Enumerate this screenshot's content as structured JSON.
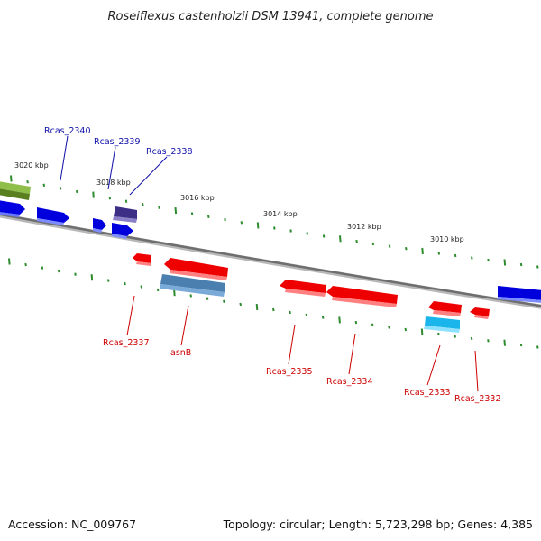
{
  "title": "Roseiflexus castenholzii DSM 13941, complete genome",
  "footer": {
    "accession": "Accession: NC_009767",
    "topology": "Topology: circular; Length: 5,723,298 bp; Genes: 4,385"
  },
  "colors": {
    "backbone": "#808080",
    "tick": "#2e8b2e",
    "forward_gene": "#0000dd",
    "forward_label": "#1010aa",
    "reverse_gene": "#ee0000",
    "reverse_label": "#cc0000",
    "selected_forward_gene": "#3a3080",
    "selected_reverse_gene": "#4a7aaa",
    "highlight_gene": "#1ab0e6",
    "partial_gene": "#6a9a2a"
  },
  "scale_labels": [
    "3020 kbp",
    "3018 kbp",
    "3016 kbp",
    "3014 kbp",
    "3012 kbp",
    "3010 kbp"
  ],
  "genes": [
    {
      "id": "Rcas_2340",
      "label": "Rcas_2340",
      "strand": "forward"
    },
    {
      "id": "Rcas_2339",
      "label": "Rcas_2339",
      "strand": "forward"
    },
    {
      "id": "Rcas_2338",
      "label": "Rcas_2338",
      "strand": "forward"
    },
    {
      "id": "Rcas_2337",
      "label": "Rcas_2337",
      "strand": "reverse"
    },
    {
      "id": "asnB",
      "label": "asnB",
      "strand": "reverse"
    },
    {
      "id": "Rcas_2335",
      "label": "Rcas_2335",
      "strand": "reverse"
    },
    {
      "id": "Rcas_2334",
      "label": "Rcas_2334",
      "strand": "reverse"
    },
    {
      "id": "Rcas_2333",
      "label": "Rcas_2333",
      "strand": "reverse"
    },
    {
      "id": "Rcas_2332",
      "label": "Rcas_2332",
      "strand": "reverse"
    }
  ]
}
